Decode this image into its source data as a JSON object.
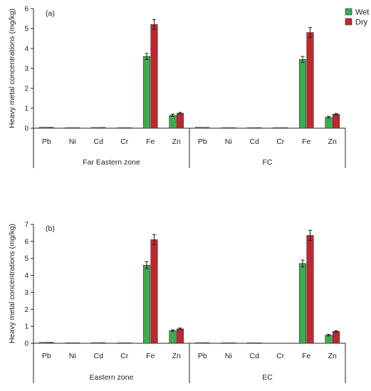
{
  "legend": {
    "items": [
      {
        "label": "Wet",
        "color": "#3cab52"
      },
      {
        "label": "Dry",
        "color": "#c0272d"
      }
    ]
  },
  "chart_data": [
    {
      "type": "bar",
      "panel_label": "(a)",
      "ylabel": "Heavy metal concentrations (mg/kg)",
      "ylim": [
        0,
        6
      ],
      "yticks": [
        0,
        1,
        2,
        3,
        4,
        5,
        6
      ],
      "categories": [
        "Pb",
        "Ni",
        "Cd",
        "Cr",
        "Fe",
        "Zn",
        "Pb",
        "Ni",
        "Cd",
        "Cr",
        "Fe",
        "Zn"
      ],
      "groups": [
        {
          "label": "Far Eastern zone",
          "count": 6
        },
        {
          "label": "FC",
          "count": 6
        }
      ],
      "series": [
        {
          "name": "Wet",
          "color": "#3cab52",
          "values": [
            0.05,
            0.03,
            0.04,
            0.03,
            3.6,
            0.65,
            0.05,
            0.03,
            0.03,
            0.03,
            3.45,
            0.55
          ],
          "errors": [
            0.01,
            0.01,
            0.01,
            0.01,
            0.15,
            0.06,
            0.01,
            0.01,
            0.01,
            0.01,
            0.15,
            0.05
          ]
        },
        {
          "name": "Dry",
          "color": "#c0272d",
          "values": [
            0.05,
            0.03,
            0.04,
            0.03,
            5.2,
            0.75,
            0.04,
            0.03,
            0.03,
            0.03,
            4.8,
            0.7
          ],
          "errors": [
            0.01,
            0.01,
            0.01,
            0.01,
            0.25,
            0.04,
            0.01,
            0.01,
            0.01,
            0.01,
            0.25,
            0.04
          ]
        }
      ]
    },
    {
      "type": "bar",
      "panel_label": "(b)",
      "ylabel": "Heavy metal concentrations (mg/kg)",
      "ylim": [
        0,
        7
      ],
      "yticks": [
        0,
        1,
        2,
        3,
        4,
        5,
        6,
        7
      ],
      "categories": [
        "Pb",
        "Ni",
        "Cd",
        "Cr",
        "Fe",
        "Zn",
        "Pb",
        "Ni",
        "Cd",
        "Cr",
        "Fe",
        "Zn"
      ],
      "groups": [
        {
          "label": "Eastern zone",
          "count": 6
        },
        {
          "label": "EC",
          "count": 6
        }
      ],
      "series": [
        {
          "name": "Wet",
          "color": "#3cab52",
          "values": [
            0.06,
            0.03,
            0.04,
            0.03,
            4.6,
            0.75,
            0.04,
            0.03,
            0.03,
            0.0,
            4.7,
            0.48
          ],
          "errors": [
            0.01,
            0.01,
            0.01,
            0.01,
            0.2,
            0.04,
            0.01,
            0.01,
            0.01,
            0.0,
            0.2,
            0.05
          ]
        },
        {
          "name": "Dry",
          "color": "#c0272d",
          "values": [
            0.06,
            0.03,
            0.04,
            0.03,
            6.1,
            0.85,
            0.04,
            0.03,
            0.03,
            0.0,
            6.35,
            0.7
          ],
          "errors": [
            0.01,
            0.01,
            0.01,
            0.01,
            0.3,
            0.05,
            0.01,
            0.01,
            0.01,
            0.0,
            0.3,
            0.04
          ]
        }
      ]
    }
  ]
}
